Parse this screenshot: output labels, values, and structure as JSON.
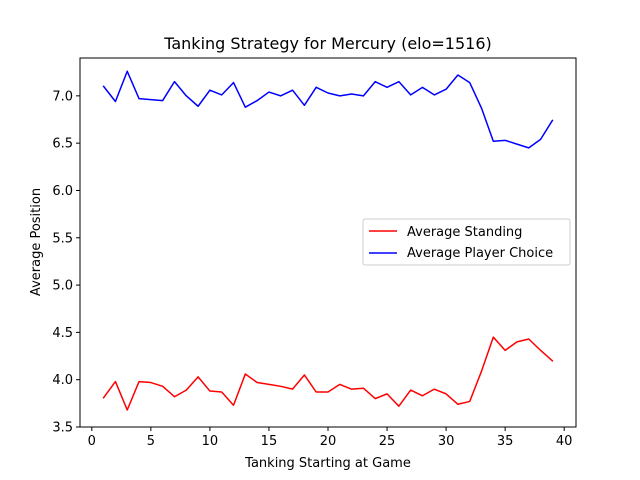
{
  "chart_data": {
    "type": "line",
    "title": "Tanking Strategy for Mercury (elo=1516)",
    "xlabel": "Tanking Starting at Game",
    "ylabel": "Average Position",
    "xlim": [
      -1,
      41
    ],
    "ylim": [
      3.5,
      7.4
    ],
    "xticks": [
      "0",
      "5",
      "10",
      "15",
      "20",
      "25",
      "30",
      "35",
      "40"
    ],
    "xtick_values": [
      0,
      5,
      10,
      15,
      20,
      25,
      30,
      35,
      40
    ],
    "yticks": [
      "3.5",
      "4.0",
      "4.5",
      "5.0",
      "5.5",
      "6.0",
      "6.5",
      "7.0"
    ],
    "ytick_values": [
      3.5,
      4.0,
      4.5,
      5.0,
      5.5,
      6.0,
      6.5,
      7.0
    ],
    "grid": false,
    "legend_position": "center-right",
    "x": [
      1,
      2,
      3,
      4,
      5,
      6,
      7,
      8,
      9,
      10,
      11,
      12,
      13,
      14,
      15,
      16,
      17,
      18,
      19,
      20,
      21,
      22,
      23,
      24,
      25,
      26,
      27,
      28,
      29,
      30,
      31,
      32,
      33,
      34,
      35,
      36,
      37,
      38,
      39
    ],
    "series": [
      {
        "name": "Average Standing",
        "color": "#ff0000",
        "values": [
          3.81,
          3.98,
          3.68,
          3.98,
          3.97,
          3.93,
          3.82,
          3.89,
          4.03,
          3.88,
          3.87,
          3.73,
          4.06,
          3.97,
          3.95,
          3.93,
          3.9,
          4.05,
          3.87,
          3.87,
          3.95,
          3.9,
          3.91,
          3.8,
          3.85,
          3.72,
          3.89,
          3.83,
          3.9,
          3.85,
          3.74,
          3.77,
          4.09,
          4.45,
          4.31,
          4.4,
          4.43,
          4.31,
          4.2
        ]
      },
      {
        "name": "Average Player Choice",
        "color": "#0000ff",
        "values": [
          7.1,
          6.94,
          7.26,
          6.97,
          6.96,
          6.95,
          7.15,
          7.0,
          6.89,
          7.06,
          7.01,
          7.14,
          6.88,
          6.95,
          7.04,
          7.0,
          7.06,
          6.9,
          7.09,
          7.03,
          7.0,
          7.02,
          7.0,
          7.15,
          7.09,
          7.15,
          7.01,
          7.09,
          7.01,
          7.07,
          7.22,
          7.14,
          6.87,
          6.52,
          6.53,
          6.49,
          6.45,
          6.54,
          6.74
        ]
      }
    ]
  }
}
